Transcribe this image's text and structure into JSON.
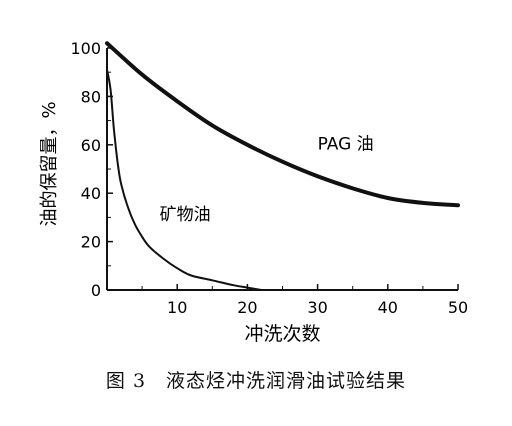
{
  "chart_data": {
    "type": "line",
    "xlabel": "冲洗次数",
    "ylabel": "油的保留量，%",
    "xlim": [
      0,
      50
    ],
    "ylim": [
      0,
      100
    ],
    "x_ticks": [
      10,
      20,
      30,
      40,
      50
    ],
    "y_ticks": [
      0,
      20,
      40,
      60,
      80,
      100
    ],
    "grid": false,
    "series": [
      {
        "name": "PAG 油",
        "x": [
          0,
          5,
          10,
          15,
          20,
          25,
          30,
          35,
          40,
          45,
          50
        ],
        "y": [
          102,
          89,
          78,
          68,
          60,
          53,
          47,
          42,
          38,
          36,
          35
        ]
      },
      {
        "name": "矿物油",
        "x": [
          0,
          0.5,
          1,
          1.5,
          2,
          3,
          4,
          5,
          6,
          8,
          10,
          12,
          15,
          18,
          20,
          22
        ],
        "y": [
          91,
          83,
          66,
          53,
          44,
          34,
          27,
          22,
          18,
          13,
          9,
          6,
          4,
          2,
          1,
          0
        ]
      }
    ]
  },
  "caption": "图 3　液态烃冲洗润滑油试验结果"
}
